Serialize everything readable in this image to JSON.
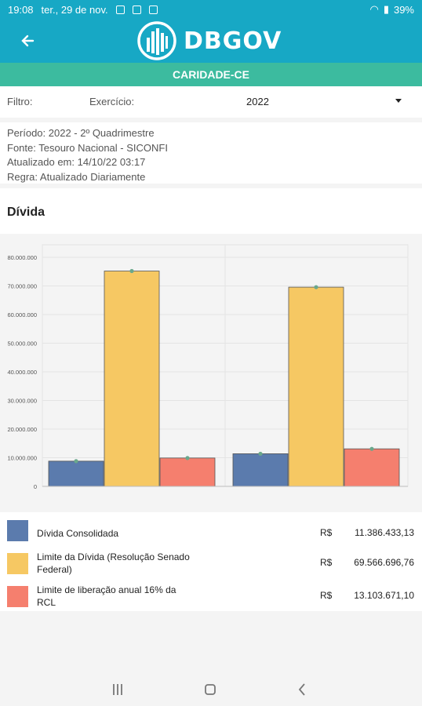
{
  "status": {
    "time": "19:08",
    "date": "ter., 29 de nov.",
    "battery": "39%"
  },
  "header": {
    "logo_text": "DBGOV",
    "entity": "CARIDADE-CE"
  },
  "filters": {
    "filter_label": "Filtro:",
    "exercise_label": "Exercício:",
    "year": "2022"
  },
  "info": {
    "period": "Período: 2022 - 2º Quadrimestre",
    "source": "Fonte: Tesouro Nacional - SICONFI",
    "updated": "Atualizado em: 14/10/22 03:17",
    "rule": "Regra: Atualizado Diariamente"
  },
  "section_title": "Dívida",
  "chart_data": {
    "type": "bar",
    "title": "",
    "xlabel": "",
    "ylabel": "",
    "ylim": [
      0,
      80000000
    ],
    "yticks": [
      "0",
      "10.000.000",
      "20.000.000",
      "30.000.000",
      "40.000.000",
      "50.000.000",
      "60.000.000",
      "70.000.000",
      "80.000.000"
    ],
    "ytick_values": [
      0,
      10000000,
      20000000,
      30000000,
      40000000,
      50000000,
      60000000,
      70000000,
      80000000
    ],
    "groups": 2,
    "grid": true,
    "series": [
      {
        "color": "#5b7bad",
        "values": [
          8800000,
          11386433.13
        ]
      },
      {
        "color": "#f6c863",
        "values": [
          75200000,
          69566696.76
        ]
      },
      {
        "color": "#f57f6e",
        "values": [
          9900000,
          13103671.1
        ]
      }
    ]
  },
  "legend": [
    {
      "label": "Dívida Consolidada",
      "currency": "R$",
      "value": "11.386.433,13",
      "color": "#5b7bad"
    },
    {
      "label": "Limite da Dívida (Resolução Senado Federal)",
      "currency": "R$",
      "value": "69.566.696,76",
      "color": "#f6c863"
    },
    {
      "label": "Limite de liberação anual 16% da RCL",
      "currency": "R$",
      "value": "13.103.671,10",
      "color": "#f57f6e"
    }
  ]
}
